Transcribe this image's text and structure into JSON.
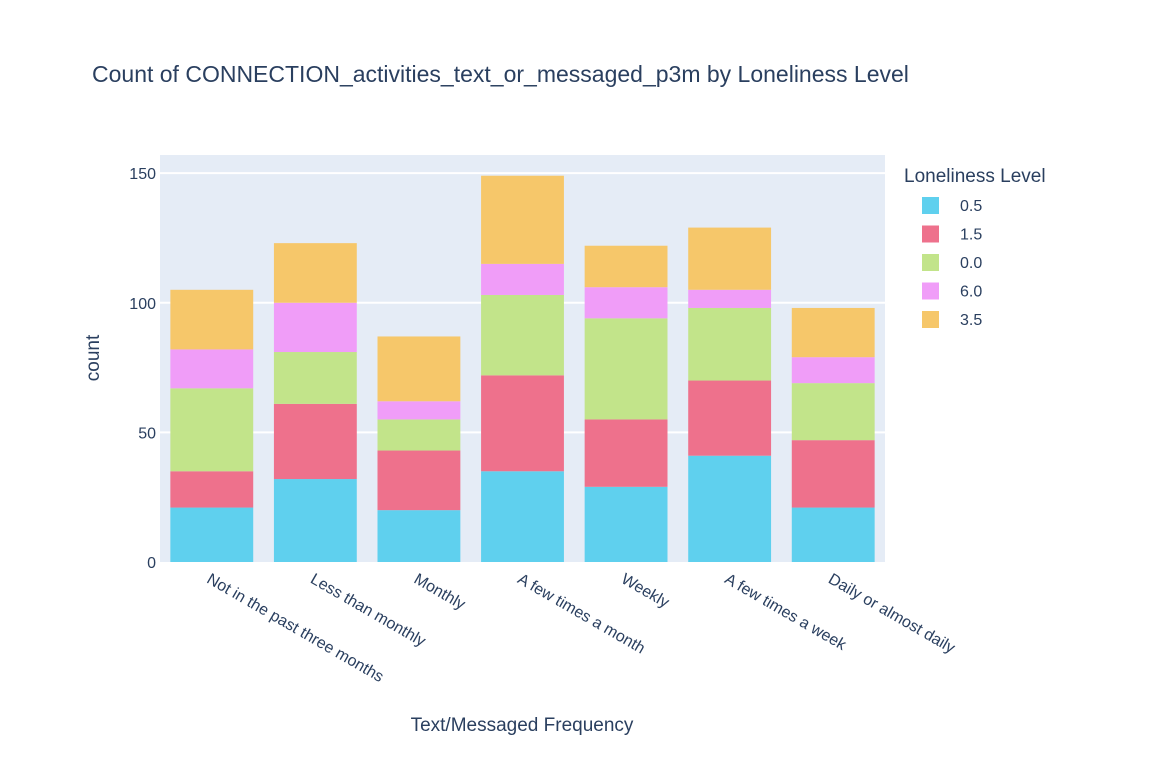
{
  "colors": {
    "background": "#ffffff",
    "plot_background": "#e5ecf6",
    "grid": "#ffffff",
    "text": "#2a3f5f"
  },
  "chart_data": {
    "type": "bar",
    "barmode": "stack",
    "title": "Count of CONNECTION_activities_text_or_messaged_p3m by Loneliness Level",
    "xlabel": "Text/Messaged Frequency",
    "ylabel": "count",
    "ylim": [
      0,
      157
    ],
    "yticks": [
      0,
      50,
      100,
      150
    ],
    "grid": true,
    "legend_title": "Loneliness Level",
    "legend_placement": "right",
    "categories": [
      "Not in the past three months",
      "Less than monthly",
      "Monthly",
      "A few times a month",
      "Weekly",
      "A few times a week",
      "Daily or almost daily"
    ],
    "series": [
      {
        "name": "0.5",
        "color": "#5fd0ee",
        "values": [
          21,
          32,
          20,
          35,
          29,
          41,
          21
        ]
      },
      {
        "name": "1.5",
        "color": "#ee718c",
        "values": [
          14,
          29,
          23,
          37,
          26,
          29,
          26
        ]
      },
      {
        "name": "0.0",
        "color": "#c2e48a",
        "values": [
          32,
          20,
          12,
          31,
          39,
          28,
          22
        ]
      },
      {
        "name": "6.0",
        "color": "#f09df8",
        "values": [
          15,
          19,
          7,
          12,
          12,
          7,
          10
        ]
      },
      {
        "name": "3.5",
        "color": "#f6c76a",
        "values": [
          23,
          23,
          25,
          34,
          16,
          24,
          19
        ]
      }
    ]
  }
}
